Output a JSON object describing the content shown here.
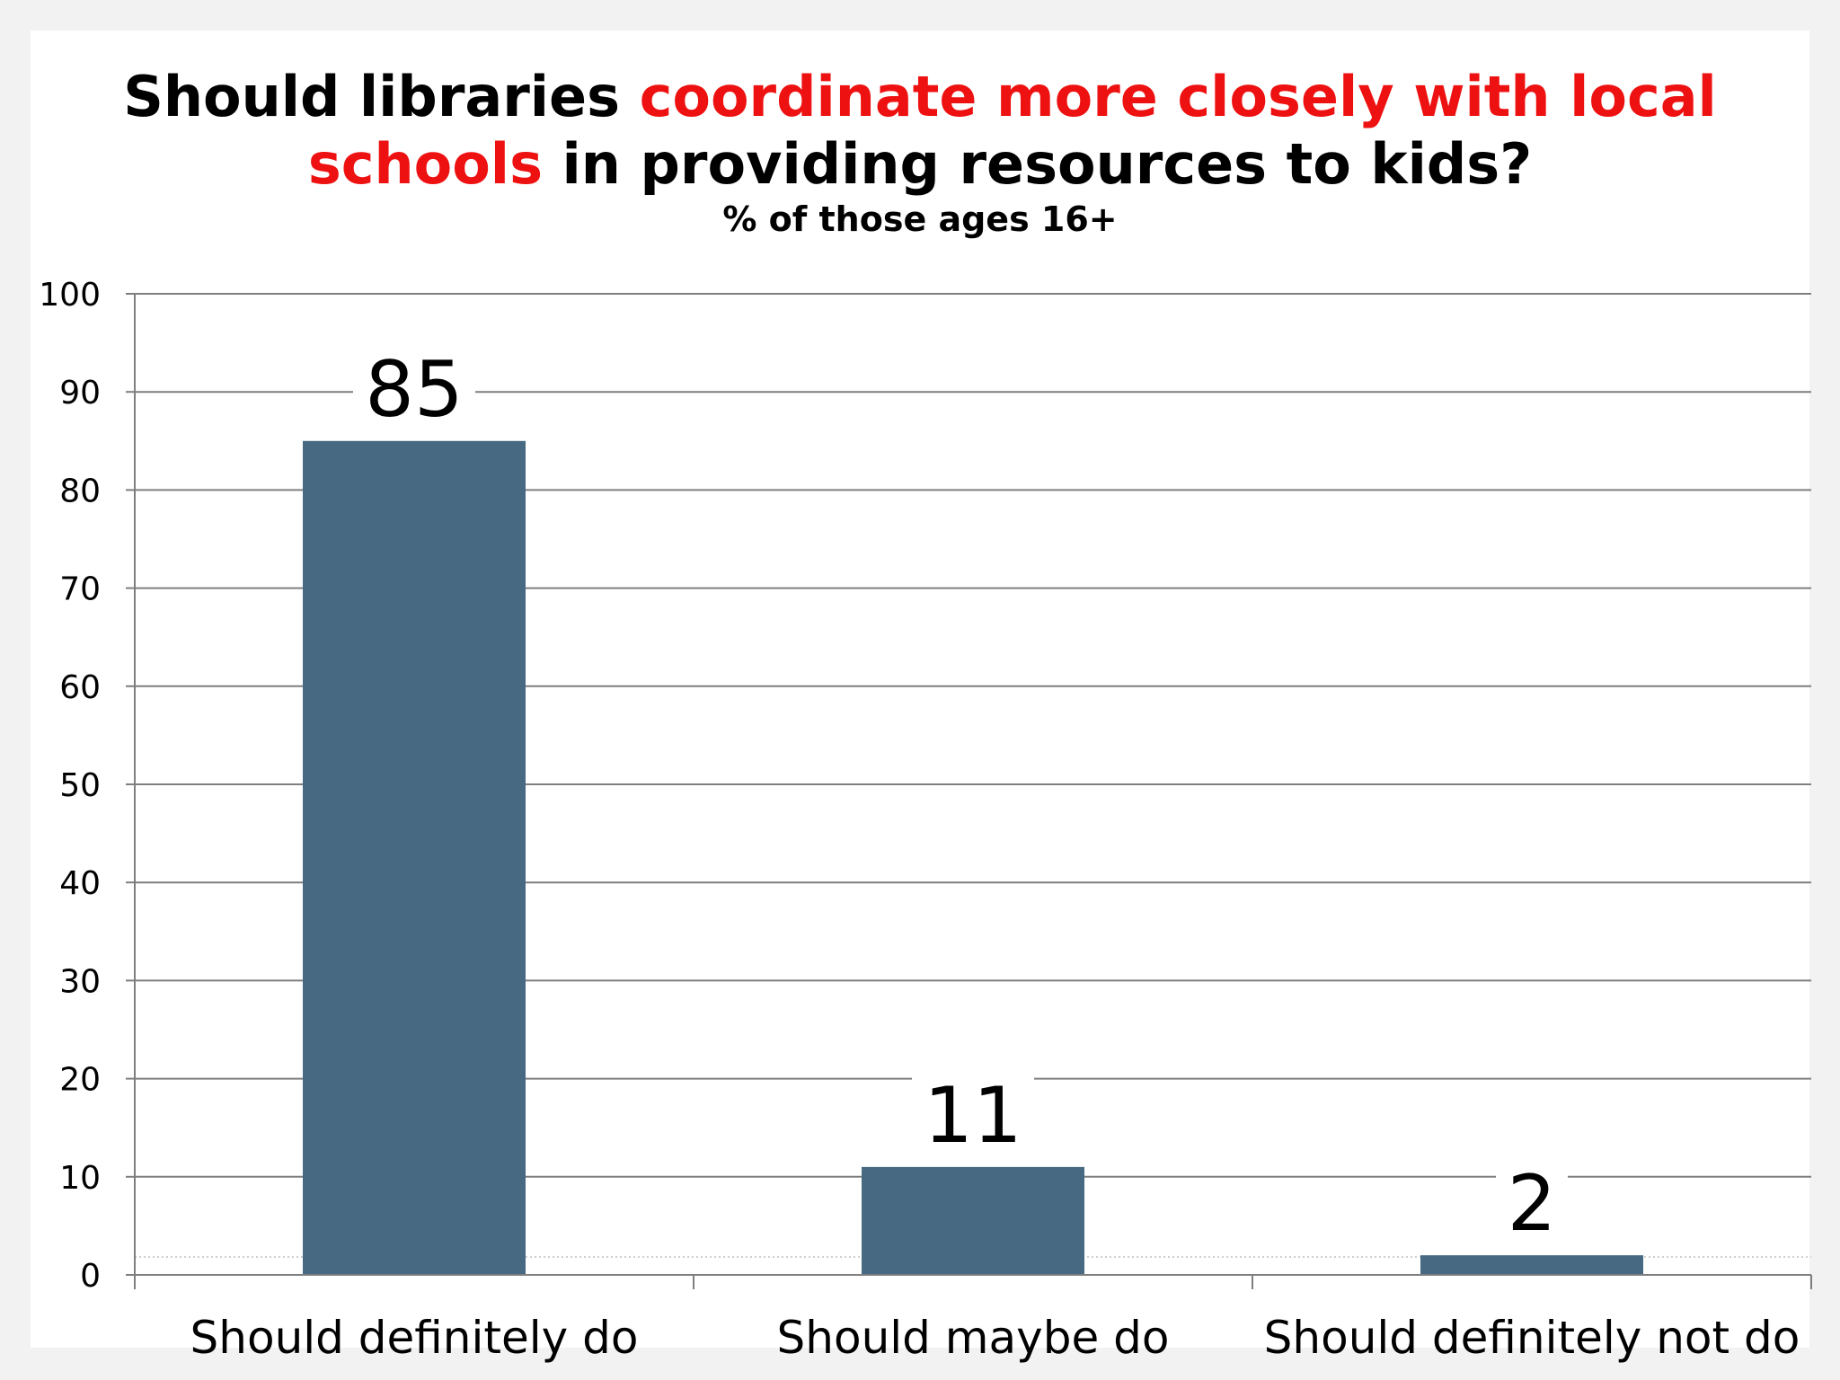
{
  "title": {
    "line1_prefix": "Should libraries ",
    "line1_highlight": "coordinate more closely with local",
    "line2_highlight": "schools",
    "line2_suffix": " in providing resources to kids?",
    "subtitle": "% of those ages 16+",
    "highlight_color": "#ee1111"
  },
  "chart_data": {
    "type": "bar",
    "title": "Should libraries coordinate more closely with local schools in providing resources to kids?",
    "subtitle": "% of those ages 16+",
    "categories": [
      "Should definitely do",
      "Should maybe do",
      "Should definitely not do"
    ],
    "values": [
      85,
      11,
      2
    ],
    "xlabel": "",
    "ylabel": "",
    "ylim": [
      0,
      100
    ],
    "yticks": [
      0,
      10,
      20,
      30,
      40,
      50,
      60,
      70,
      80,
      90,
      100
    ],
    "grid": true,
    "legend": "none",
    "bar_color": "#476a82",
    "grid_color": "#7f7f7f"
  }
}
